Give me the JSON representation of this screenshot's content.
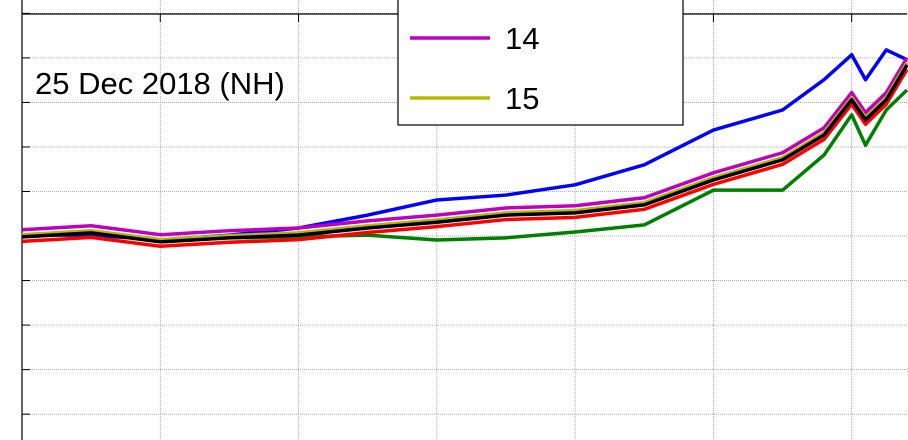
{
  "chart_data": {
    "type": "line",
    "annotation": "25 Dec 2018 (NH)",
    "x": [
      0,
      0.5,
      1,
      1.5,
      2,
      2.5,
      3,
      3.5,
      4,
      4.5,
      5,
      5.5,
      5.8,
      6.0,
      6.1,
      6.25,
      6.4
    ],
    "series": [
      {
        "color": "#0000ff",
        "values": [
          4.02,
          4.02,
          3.91,
          4.02,
          4.18,
          4.47,
          4.81,
          4.92,
          5.15,
          5.6,
          6.38,
          6.83,
          7.51,
          8.07,
          7.51,
          8.18,
          7.96
        ]
      },
      {
        "color": "#008000",
        "values": [
          3.98,
          4.07,
          3.87,
          3.96,
          3.98,
          4.02,
          3.91,
          3.96,
          4.09,
          4.25,
          5.03,
          5.03,
          5.82,
          6.72,
          6.04,
          6.83,
          7.28
        ]
      },
      {
        "name": "14",
        "color": "#c000c0",
        "values": [
          4.14,
          4.23,
          4.03,
          4.12,
          4.18,
          4.34,
          4.47,
          4.63,
          4.68,
          4.86,
          5.42,
          5.87,
          6.43,
          7.22,
          6.77,
          7.22,
          8.0
        ]
      },
      {
        "name": "15",
        "color": "#b8b800",
        "values": [
          4.03,
          4.12,
          3.92,
          4.01,
          4.07,
          4.23,
          4.36,
          4.52,
          4.57,
          4.75,
          5.31,
          5.76,
          6.32,
          7.11,
          6.66,
          7.11,
          7.89
        ]
      },
      {
        "color": "#ff0000",
        "values": [
          3.88,
          3.97,
          3.77,
          3.86,
          3.92,
          4.08,
          4.21,
          4.37,
          4.42,
          4.6,
          5.16,
          5.61,
          6.17,
          6.96,
          6.51,
          6.96,
          7.74
        ]
      },
      {
        "color": "#000000",
        "values": [
          3.98,
          4.07,
          3.87,
          3.96,
          4.02,
          4.18,
          4.31,
          4.47,
          4.52,
          4.7,
          5.26,
          5.71,
          6.27,
          7.06,
          6.61,
          7.06,
          7.84
        ]
      }
    ],
    "xlim": [
      0,
      6.4
    ],
    "xticks": [
      0,
      1,
      2,
      3,
      4,
      5,
      6
    ],
    "ylim": [
      -0.58,
      9.3
    ],
    "yticks": [
      0,
      1,
      2,
      3,
      4,
      5,
      6,
      7,
      8,
      9
    ],
    "grid": true
  }
}
